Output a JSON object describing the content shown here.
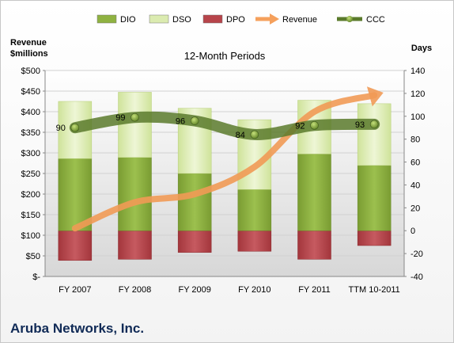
{
  "chart_data": {
    "type": "bar",
    "title": "12-Month Periods",
    "company": "Aruba Networks, Inc.",
    "left_axis_title": [
      "Revenue",
      "$millions"
    ],
    "right_axis_title": "Days",
    "categories": [
      "FY 2007",
      "FY 2008",
      "FY 2009",
      "FY 2010",
      "FY 2011",
      "TTM 10-2011"
    ],
    "left_axis": {
      "min": 0,
      "max": 500,
      "step": 50,
      "tick_labels": [
        "$-",
        "$50",
        "$100",
        "$150",
        "$200",
        "$250",
        "$300",
        "$350",
        "$400",
        "$450",
        "$500"
      ]
    },
    "right_axis": {
      "min": -40,
      "max": 140,
      "step": 20,
      "tick_labels": [
        "-40",
        "-20",
        "0",
        "20",
        "40",
        "60",
        "80",
        "100",
        "120",
        "140"
      ]
    },
    "legend_position": "top",
    "legend": [
      {
        "name": "DIO",
        "kind": "bar",
        "color": "#8fb241"
      },
      {
        "name": "DSO",
        "kind": "bar",
        "color": "#dbebb0"
      },
      {
        "name": "DPO",
        "kind": "bar",
        "color": "#b7444a"
      },
      {
        "name": "Revenue",
        "kind": "arrow",
        "color": "#f5a05c"
      },
      {
        "name": "CCC",
        "kind": "line",
        "color": "#5a7a2c"
      }
    ],
    "series": [
      {
        "name": "DIO",
        "axis": "right",
        "values": [
          63,
          64,
          50,
          36,
          67,
          57
        ]
      },
      {
        "name": "DSO",
        "axis": "right",
        "values": [
          50,
          57,
          57,
          61,
          47,
          54
        ]
      },
      {
        "name": "DPO",
        "axis": "right",
        "values": [
          -26,
          -25,
          -19,
          -18,
          -25,
          -13
        ]
      },
      {
        "name": "CCC",
        "axis": "right",
        "values": [
          90,
          99,
          96,
          84,
          92,
          93
        ]
      },
      {
        "name": "Revenue",
        "axis": "left",
        "values": [
          117,
          180,
          200,
          266,
          400,
          440
        ]
      }
    ]
  }
}
